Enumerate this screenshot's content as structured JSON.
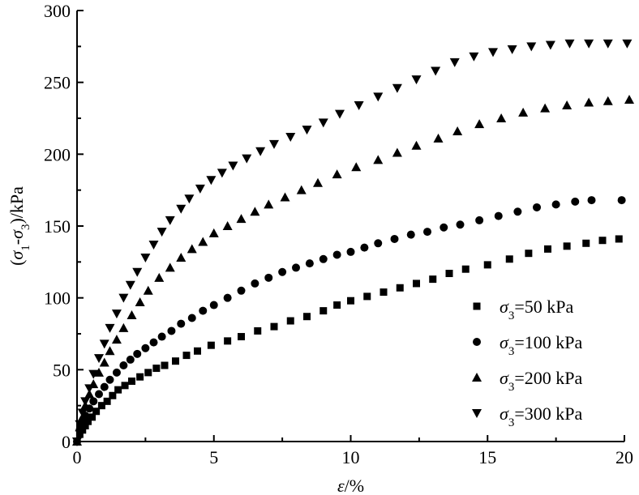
{
  "chart_data": {
    "type": "scatter",
    "xlabel": "ε/%",
    "ylabel": "(σ1-σ3)/kPa",
    "xlim": [
      0,
      20
    ],
    "ylim": [
      0,
      300
    ],
    "xticks": [
      0,
      5,
      10,
      15,
      20
    ],
    "yticks": [
      0,
      50,
      100,
      150,
      200,
      250,
      300
    ],
    "legend_position": "bottom-right",
    "series": [
      {
        "name": "σ3=50 kPa",
        "marker": "square",
        "x": [
          0,
          0.1,
          0.2,
          0.3,
          0.4,
          0.55,
          0.7,
          0.9,
          1.1,
          1.3,
          1.5,
          1.75,
          2.0,
          2.3,
          2.6,
          2.9,
          3.2,
          3.6,
          4.0,
          4.4,
          4.9,
          5.5,
          6.0,
          6.6,
          7.2,
          7.8,
          8.4,
          9.0,
          9.5,
          10.0,
          10.6,
          11.2,
          11.8,
          12.4,
          13.0,
          13.6,
          14.2,
          15.0,
          15.8,
          16.5,
          17.2,
          17.9,
          18.6,
          19.2,
          19.8
        ],
        "y": [
          0,
          5,
          8,
          11,
          14,
          17,
          21,
          25,
          28,
          32,
          36,
          39,
          42,
          45,
          48,
          51,
          53,
          56,
          60,
          63,
          67,
          70,
          73,
          77,
          80,
          84,
          87,
          91,
          95,
          98,
          101,
          104,
          107,
          110,
          113,
          117,
          120,
          123,
          127,
          131,
          134,
          136,
          138,
          140,
          141
        ]
      },
      {
        "name": "σ3=100 kPa",
        "marker": "circle",
        "x": [
          0,
          0.1,
          0.2,
          0.3,
          0.45,
          0.6,
          0.8,
          1.0,
          1.2,
          1.45,
          1.7,
          1.95,
          2.2,
          2.5,
          2.8,
          3.1,
          3.45,
          3.8,
          4.2,
          4.6,
          5.0,
          5.5,
          6.0,
          6.5,
          7.0,
          7.5,
          8.0,
          8.5,
          9.0,
          9.5,
          10.0,
          10.5,
          11.0,
          11.6,
          12.2,
          12.8,
          13.4,
          14.0,
          14.7,
          15.4,
          16.1,
          16.8,
          17.5,
          18.2,
          18.8,
          19.9
        ],
        "y": [
          0,
          8,
          13,
          18,
          23,
          28,
          33,
          38,
          43,
          48,
          53,
          57,
          61,
          65,
          69,
          73,
          77,
          82,
          86,
          91,
          95,
          100,
          105,
          110,
          114,
          118,
          121,
          124,
          127,
          130,
          132,
          135,
          138,
          141,
          144,
          146,
          149,
          151,
          154,
          157,
          160,
          163,
          165,
          167,
          168,
          168
        ]
      },
      {
        "name": "σ3=200 kPa",
        "marker": "triangle-up",
        "x": [
          0,
          0.1,
          0.2,
          0.3,
          0.45,
          0.6,
          0.8,
          1.0,
          1.2,
          1.45,
          1.7,
          2.0,
          2.3,
          2.6,
          3.0,
          3.4,
          3.8,
          4.2,
          4.6,
          5.0,
          5.5,
          6.0,
          6.5,
          7.0,
          7.6,
          8.2,
          8.8,
          9.5,
          10.2,
          11.0,
          11.7,
          12.4,
          13.2,
          13.9,
          14.7,
          15.5,
          16.3,
          17.1,
          17.9,
          18.7,
          19.4,
          20.2
        ],
        "y": [
          0,
          10,
          17,
          25,
          33,
          40,
          48,
          55,
          63,
          71,
          79,
          88,
          97,
          105,
          114,
          121,
          128,
          134,
          139,
          145,
          150,
          155,
          160,
          165,
          170,
          175,
          180,
          186,
          191,
          196,
          201,
          206,
          211,
          216,
          221,
          225,
          229,
          232,
          234,
          236,
          237,
          238
        ]
      },
      {
        "name": "σ3=300 kPa",
        "marker": "triangle-down",
        "x": [
          0,
          0.1,
          0.2,
          0.3,
          0.45,
          0.6,
          0.8,
          1.0,
          1.2,
          1.45,
          1.7,
          1.95,
          2.2,
          2.5,
          2.8,
          3.1,
          3.4,
          3.8,
          4.1,
          4.5,
          4.9,
          5.3,
          5.7,
          6.2,
          6.7,
          7.2,
          7.8,
          8.4,
          9.0,
          9.6,
          10.3,
          11.0,
          11.7,
          12.4,
          13.1,
          13.8,
          14.5,
          15.2,
          15.9,
          16.6,
          17.3,
          18.0,
          18.7,
          19.4,
          20.1
        ],
        "y": [
          0,
          12,
          20,
          28,
          37,
          47,
          58,
          68,
          79,
          89,
          100,
          109,
          118,
          128,
          137,
          146,
          154,
          162,
          169,
          176,
          182,
          187,
          192,
          197,
          202,
          207,
          212,
          217,
          222,
          228,
          234,
          240,
          246,
          252,
          258,
          264,
          268,
          271,
          273,
          275,
          276,
          277,
          277,
          277,
          277
        ]
      }
    ]
  }
}
